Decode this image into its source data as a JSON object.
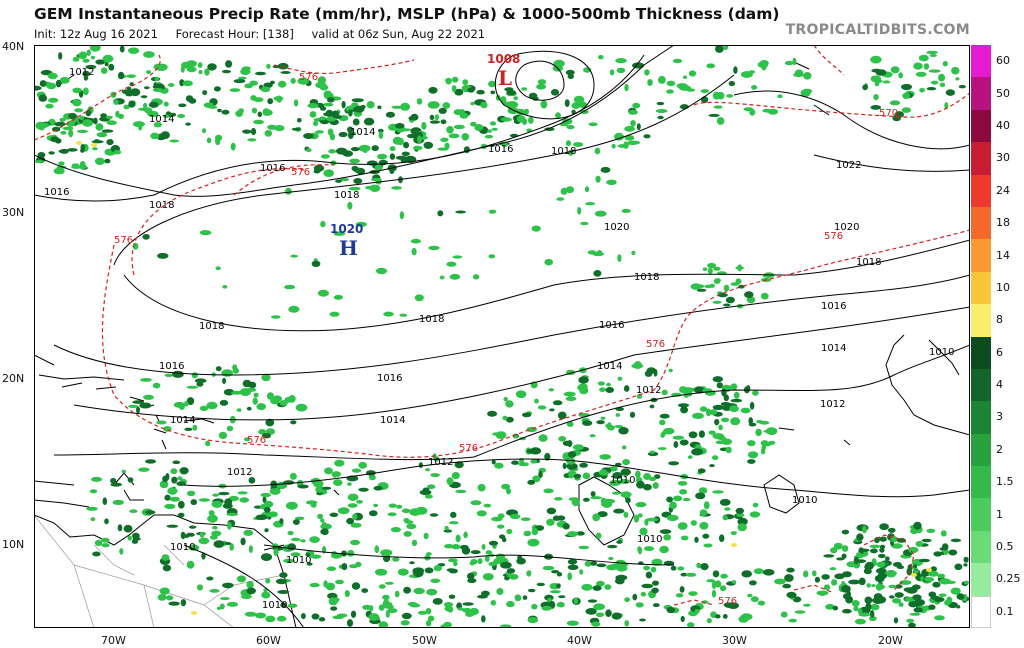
{
  "header": {
    "title": "GEM Instantaneous Precip Rate (mm/hr), MSLP (hPa) & 1000-500mb Thickness (dam)",
    "init": "Init: 12z Aug 16 2021",
    "forecast_hour": "Forecast Hour: [138]",
    "valid": "valid at 06z Sun, Aug 22 2021",
    "credit": "TROPICALTIDBITS.COM"
  },
  "axes": {
    "lat_labels": [
      "40N",
      "30N",
      "20N",
      "10N"
    ],
    "lon_labels": [
      "70W",
      "60W",
      "50W",
      "40W",
      "30W",
      "20W"
    ]
  },
  "pressure_centers": [
    {
      "type": "L",
      "value": "1008",
      "color": "#d42020"
    },
    {
      "type": "H",
      "value": "1020",
      "color": "#1f3a93"
    }
  ],
  "isobar_labels": [
    "1012",
    "1014",
    "1016",
    "1018",
    "1020",
    "1022",
    "1010"
  ],
  "thickness_labels": [
    "576",
    "570"
  ],
  "colorbar": {
    "labels": [
      "60",
      "50",
      "40",
      "30",
      "24",
      "18",
      "14",
      "10",
      "8",
      "6",
      "4",
      "3",
      "2",
      "1.5",
      "1",
      "0.5",
      "0.25",
      "0.1"
    ],
    "colors": [
      "#e61ad0",
      "#b8127e",
      "#8c0a3c",
      "#c81e32",
      "#ee3a2d",
      "#f46a2a",
      "#f99a33",
      "#f9c63a",
      "#f8ee6a",
      "#0c4a20",
      "#13652b",
      "#1c8534",
      "#27a23f",
      "#37b84b",
      "#4dcc5e",
      "#6adc77",
      "#96eb9c",
      "#ffffff"
    ]
  },
  "colors": {
    "isobar": "#000000",
    "thickness": "#d42020",
    "precip_light": "#2ec24a",
    "precip_dark": "#0f6f2a",
    "precip_yellow": "#f3e24a",
    "coast": "#000000"
  }
}
